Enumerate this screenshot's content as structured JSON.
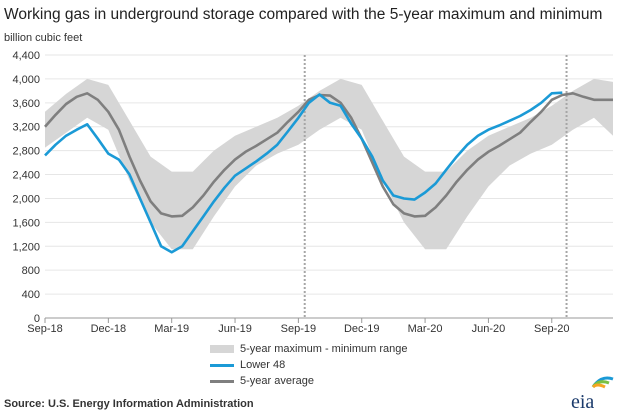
{
  "title": "Working gas in underground  storage compared with the 5-year maximum and minimum",
  "unit_label": "billion cubic feet",
  "source": "Source:  U.S. Energy Information Administration",
  "logo_text": "eia",
  "colors": {
    "lower48": "#1b9ad6",
    "average": "#7f7f7f",
    "range": "#d6d6d6",
    "grid": "#e6e6e6",
    "dashed": "#a6a6a6"
  },
  "legend": [
    {
      "label": "5-year maximum - minimum range",
      "key": "range"
    },
    {
      "label": "Lower 48",
      "key": "lower48"
    },
    {
      "label": "5-year average",
      "key": "average"
    }
  ],
  "chart_data": {
    "type": "line",
    "title": "Working gas in underground  storage compared with the 5-year maximum and minimum",
    "ylabel": "billion cubic feet",
    "ylim": [
      0,
      4400
    ],
    "yticks": [
      0,
      400,
      800,
      1200,
      1600,
      2000,
      2400,
      2800,
      3200,
      3600,
      4000,
      4400
    ],
    "ytick_labels": [
      "0",
      "400",
      "800",
      "1,200",
      "1,600",
      "2,000",
      "2,400",
      "2,800",
      "3,200",
      "3,600",
      "4,000",
      "4,400"
    ],
    "x_unit": "month index from Sep-18",
    "xlim": [
      0,
      26.9
    ],
    "xticks": [
      {
        "x": 0,
        "label": "Sep-18"
      },
      {
        "x": 3,
        "label": "Dec-18"
      },
      {
        "x": 6,
        "label": "Mar-19"
      },
      {
        "x": 9,
        "label": "Jun-19"
      },
      {
        "x": 12,
        "label": "Sep-19"
      },
      {
        "x": 15,
        "label": "Dec-19"
      },
      {
        "x": 18,
        "label": "Mar-20"
      },
      {
        "x": 21,
        "label": "Jun-20"
      },
      {
        "x": 24,
        "label": "Sep-20"
      }
    ],
    "grid": true,
    "vertical_markers": [
      12.3,
      24.7
    ],
    "series": [
      {
        "name": "5-year maximum - minimum range",
        "kind": "band",
        "x": [
          0,
          1,
          2,
          3,
          4,
          5,
          6,
          7,
          8,
          9,
          10,
          11,
          12,
          13,
          14,
          15,
          16,
          17,
          18,
          19,
          20,
          21,
          22,
          23,
          24,
          25,
          26,
          26.9
        ],
        "upper": [
          3450,
          3750,
          4000,
          3900,
          3300,
          2700,
          2450,
          2450,
          2800,
          3050,
          3200,
          3350,
          3550,
          3800,
          4000,
          3900,
          3300,
          2700,
          2450,
          2450,
          2800,
          3050,
          3200,
          3350,
          3550,
          3800,
          4000,
          3950
        ],
        "lower": [
          2850,
          3100,
          3350,
          3150,
          2300,
          1600,
          1150,
          1150,
          1700,
          2200,
          2550,
          2750,
          2900,
          3150,
          3350,
          3150,
          2300,
          1600,
          1150,
          1150,
          1700,
          2200,
          2550,
          2750,
          2900,
          3150,
          3350,
          3050
        ]
      },
      {
        "name": "5-year average",
        "kind": "line",
        "x": [
          0,
          0.5,
          1,
          1.5,
          2,
          2.5,
          3,
          3.5,
          4,
          4.5,
          5,
          5.5,
          6,
          6.5,
          7,
          7.5,
          8,
          8.5,
          9,
          9.5,
          10,
          10.5,
          11,
          11.5,
          12,
          12.5,
          13,
          13.5,
          14,
          14.5,
          15,
          15.5,
          16,
          16.5,
          17,
          17.5,
          18,
          18.5,
          19,
          19.5,
          20,
          20.5,
          21,
          21.5,
          22,
          22.5,
          23,
          23.5,
          24,
          24.5,
          25,
          25.5,
          26,
          26.5,
          26.9
        ],
        "y": [
          3200,
          3400,
          3580,
          3700,
          3760,
          3650,
          3450,
          3150,
          2700,
          2300,
          1950,
          1750,
          1700,
          1710,
          1850,
          2050,
          2280,
          2480,
          2650,
          2780,
          2880,
          2990,
          3100,
          3280,
          3450,
          3650,
          3730,
          3720,
          3600,
          3350,
          3000,
          2600,
          2200,
          1900,
          1750,
          1700,
          1710,
          1850,
          2050,
          2280,
          2480,
          2650,
          2780,
          2880,
          2990,
          3100,
          3280,
          3450,
          3650,
          3730,
          3760,
          3700,
          3650,
          3650,
          3650
        ]
      },
      {
        "name": "Lower 48",
        "kind": "line",
        "x": [
          0,
          0.5,
          1,
          1.5,
          2,
          2.5,
          3,
          3.5,
          4,
          4.5,
          5,
          5.5,
          6,
          6.5,
          7,
          7.5,
          8,
          8.5,
          9,
          9.5,
          10,
          10.5,
          11,
          11.5,
          12,
          12.5,
          13,
          13.5,
          14,
          14.5,
          15,
          15.5,
          16,
          16.5,
          17,
          17.5,
          18,
          18.5,
          19,
          19.5,
          20,
          20.5,
          21,
          21.5,
          22,
          22.5,
          23,
          23.5,
          24,
          24.5
        ],
        "y": [
          2720,
          2900,
          3050,
          3150,
          3240,
          3000,
          2750,
          2650,
          2400,
          2000,
          1600,
          1200,
          1100,
          1200,
          1450,
          1700,
          1950,
          2180,
          2380,
          2500,
          2620,
          2750,
          2900,
          3120,
          3350,
          3600,
          3740,
          3600,
          3550,
          3250,
          3000,
          2700,
          2300,
          2050,
          2000,
          1980,
          2100,
          2250,
          2480,
          2700,
          2900,
          3050,
          3150,
          3220,
          3300,
          3380,
          3480,
          3600,
          3760,
          3770
        ]
      }
    ]
  }
}
